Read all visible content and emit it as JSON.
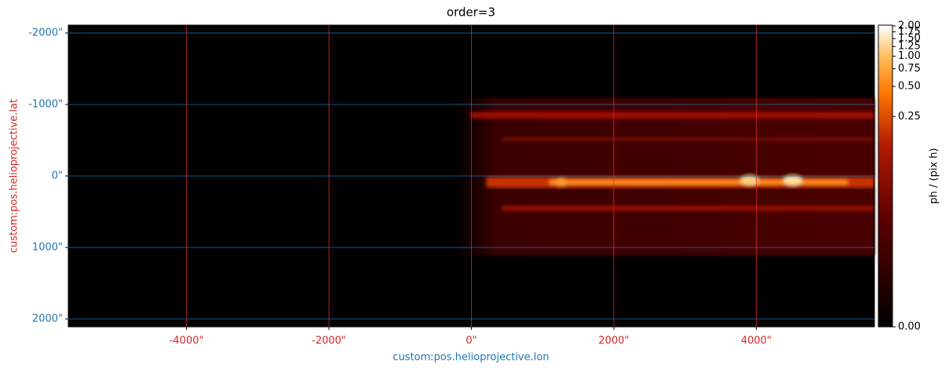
{
  "chart_data": {
    "type": "image",
    "title": "order=3",
    "xlabel": "custom:pos.helioprojective.lon",
    "ylabel": "custom:pos.helioprojective.lat",
    "xlim": [
      -5660,
      5660
    ],
    "ylim": [
      2110,
      -2110
    ],
    "xticks": [
      {
        "value": -4000,
        "label": "-4000\""
      },
      {
        "value": -2000,
        "label": "-2000\""
      },
      {
        "value": 0,
        "label": "0\""
      },
      {
        "value": 2000,
        "label": "2000\""
      },
      {
        "value": 4000,
        "label": "4000\""
      }
    ],
    "yticks": [
      {
        "value": -2000,
        "label": "-2000\""
      },
      {
        "value": -1000,
        "label": "-1000\""
      },
      {
        "value": 0,
        "label": "0\""
      },
      {
        "value": 1000,
        "label": "1000\""
      },
      {
        "value": 2000,
        "label": "2000\""
      }
    ],
    "x_color": "#d62728",
    "y_color": "#1f77b4",
    "grid": true,
    "colorbar": {
      "label": "ph / (pix h)",
      "lim": [
        0,
        2.04
      ],
      "stretch": "log",
      "ticks": [
        {
          "value": 0,
          "label": "0.00"
        },
        {
          "value": 0.25,
          "label": "0.25"
        },
        {
          "value": 0.5,
          "label": "0.50"
        },
        {
          "value": 0.75,
          "label": "0.75"
        },
        {
          "value": 1,
          "label": "1.00"
        },
        {
          "value": 1.25,
          "label": "1.25"
        },
        {
          "value": 1.5,
          "label": "1.50"
        },
        {
          "value": 1.75,
          "label": "1.75"
        },
        {
          "value": 2,
          "label": "2.00"
        }
      ]
    }
  }
}
